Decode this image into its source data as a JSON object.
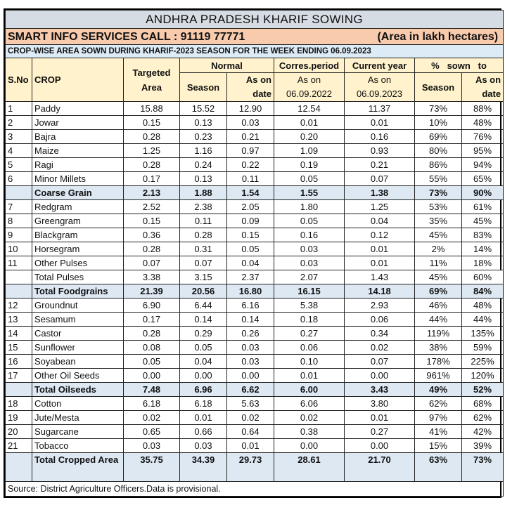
{
  "title": "ANDHRA PRADESH KHARIF SOWING",
  "contact": "SMART INFO SERVICES CALL : 91119 77771",
  "unit": "(Area in lakh hectares)",
  "subtitle": "CROP-WISE AREA SOWN DURING KHARIF-2023 SEASON FOR THE WEEK ENDING 06.09.2023",
  "headers": {
    "sno": "S.No",
    "crop": "CROP",
    "targeted": "Targeted Area",
    "normal": "Normal",
    "normal_season": "Season",
    "normal_date": "As on date",
    "corres": "Corres.period",
    "corres_sub": "As on 06.09.2022",
    "current": "Current year",
    "current_sub": "As on 06.09.2023",
    "pct": "%   sown   to",
    "pct_season": "Season",
    "pct_date": "As on date"
  },
  "rows": [
    {
      "sno": "1",
      "crop": "Paddy",
      "v": [
        "15.88",
        "15.52",
        "12.90",
        "12.54",
        "11.37",
        "73%",
        "88%"
      ]
    },
    {
      "sno": "2",
      "crop": "Jowar",
      "v": [
        "0.15",
        "0.13",
        "0.03",
        "0.01",
        "0.01",
        "10%",
        "48%"
      ]
    },
    {
      "sno": "3",
      "crop": "Bajra",
      "v": [
        "0.28",
        "0.23",
        "0.21",
        "0.20",
        "0.16",
        "69%",
        "76%"
      ]
    },
    {
      "sno": "4",
      "crop": "Maize",
      "v": [
        "1.25",
        "1.16",
        "0.97",
        "1.09",
        "0.93",
        "80%",
        "95%"
      ]
    },
    {
      "sno": "5",
      "crop": "Ragi",
      "v": [
        "0.28",
        "0.24",
        "0.22",
        "0.19",
        "0.21",
        "86%",
        "94%"
      ]
    },
    {
      "sno": "6",
      "crop": "Minor Millets",
      "v": [
        "0.17",
        "0.13",
        "0.11",
        "0.05",
        "0.07",
        "55%",
        "65%"
      ]
    },
    {
      "sno": "",
      "crop": "Coarse  Grain",
      "total": "bold",
      "v": [
        "2.13",
        "1.88",
        "1.54",
        "1.55",
        "1.38",
        "73%",
        "90%"
      ]
    },
    {
      "sno": "7",
      "crop": "Redgram",
      "v": [
        "2.52",
        "2.38",
        "2.05",
        "1.80",
        "1.25",
        "53%",
        "61%"
      ]
    },
    {
      "sno": "8",
      "crop": "Greengram",
      "v": [
        "0.15",
        "0.11",
        "0.09",
        "0.05",
        "0.04",
        "35%",
        "45%"
      ]
    },
    {
      "sno": "9",
      "crop": "Blackgram",
      "v": [
        "0.36",
        "0.28",
        "0.15",
        "0.16",
        "0.12",
        "45%",
        "83%"
      ]
    },
    {
      "sno": "10",
      "crop": "Horsegram",
      "v": [
        "0.28",
        "0.31",
        "0.05",
        "0.03",
        "0.01",
        "2%",
        "14%"
      ]
    },
    {
      "sno": "11",
      "crop": "Other Pulses",
      "v": [
        "0.07",
        "0.07",
        "0.04",
        "0.03",
        "0.01",
        "11%",
        "18%"
      ]
    },
    {
      "sno": "",
      "crop": "Total Pulses",
      "total": "plain",
      "v": [
        "3.38",
        "3.15",
        "2.37",
        "2.07",
        "1.43",
        "45%",
        "60%"
      ]
    },
    {
      "sno": "",
      "crop": "Total  Foodgrains",
      "total": "bold",
      "v": [
        "21.39",
        "20.56",
        "16.80",
        "16.15",
        "14.18",
        "69%",
        "84%"
      ]
    },
    {
      "sno": "12",
      "crop": "Groundnut",
      "v": [
        "6.90",
        "6.44",
        "6.16",
        "5.38",
        "2.93",
        "46%",
        "48%"
      ]
    },
    {
      "sno": "13",
      "crop": "Sesamum",
      "v": [
        "0.17",
        "0.14",
        "0.14",
        "0.18",
        "0.06",
        "44%",
        "44%"
      ]
    },
    {
      "sno": "14",
      "crop": "Castor",
      "v": [
        "0.28",
        "0.29",
        "0.26",
        "0.27",
        "0.34",
        "119%",
        "135%"
      ]
    },
    {
      "sno": "15",
      "crop": "Sunflower",
      "v": [
        "0.08",
        "0.05",
        "0.03",
        "0.06",
        "0.02",
        "38%",
        "59%"
      ]
    },
    {
      "sno": "16",
      "crop": "Soyabean",
      "v": [
        "0.05",
        "0.04",
        "0.03",
        "0.10",
        "0.07",
        "178%",
        "225%"
      ]
    },
    {
      "sno": "17",
      "crop": "Other Oil Seeds",
      "v": [
        "0.00",
        "0.00",
        "0.00",
        "0.01",
        "0.00",
        "961%",
        "120%"
      ]
    },
    {
      "sno": "",
      "crop": "Total Oilseeds",
      "total": "bold",
      "v": [
        "7.48",
        "6.96",
        "6.62",
        "6.00",
        "3.43",
        "49%",
        "52%"
      ]
    },
    {
      "sno": "18",
      "crop": "Cotton",
      "v": [
        "6.18",
        "6.18",
        "5.63",
        "6.06",
        "3.80",
        "62%",
        "68%"
      ]
    },
    {
      "sno": "19",
      "crop": "Jute/Mesta",
      "v": [
        "0.02",
        "0.01",
        "0.02",
        "0.02",
        "0.01",
        "97%",
        "62%"
      ]
    },
    {
      "sno": "20",
      "crop": "Sugarcane",
      "v": [
        "0.65",
        "0.66",
        "0.64",
        "0.38",
        "0.27",
        "41%",
        "42%"
      ]
    },
    {
      "sno": "21",
      "crop": "Tobacco",
      "v": [
        "0.03",
        "0.03",
        "0.01",
        "0.00",
        "0.00",
        "15%",
        "39%"
      ]
    },
    {
      "sno": "",
      "crop": "Total Cropped Area",
      "total": "big",
      "v": [
        "35.75",
        "34.39",
        "29.73",
        "28.61",
        "21.70",
        "63%",
        "73%"
      ]
    }
  ],
  "source": "Source:  District  Agriculture Officers.Data is provisional."
}
